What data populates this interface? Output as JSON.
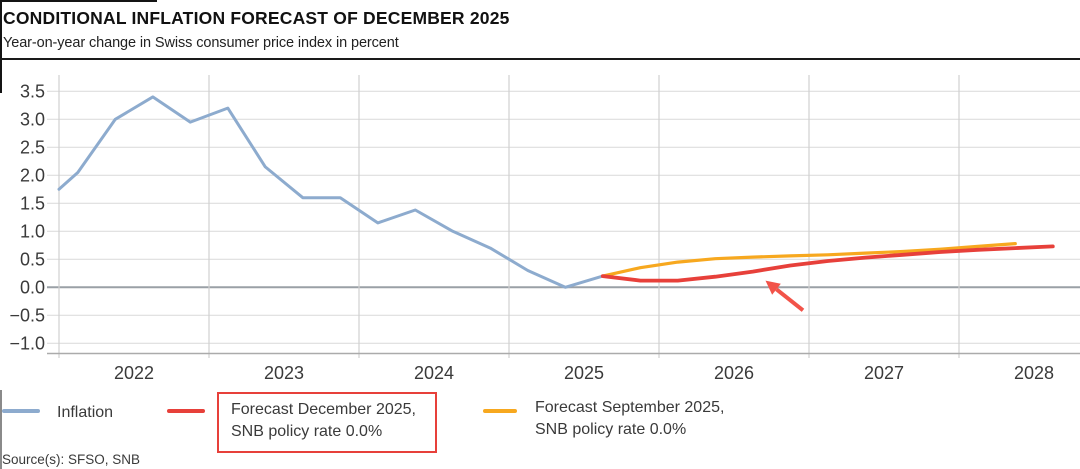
{
  "header": {
    "title": "CONDITIONAL INFLATION FORECAST OF DECEMBER 2025",
    "subtitle": "Year-on-year change in Swiss consumer price index in percent"
  },
  "source_note": "Source(s): SFSO, SNB",
  "colors": {
    "inflation_line": "#8dabce",
    "forecast_december": "#e7403a",
    "forecast_september": "#f7a81f",
    "highlight_box": "#e7403a",
    "arrow": "#f25349",
    "h_gridline": "#dedede",
    "v_gridline": "#d0d0d0",
    "zero_line": "#9aa0a6",
    "axis_line": "#ababab",
    "header_rule": "#1a1a1a",
    "tick_text": "#3a3a3a"
  },
  "legend": {
    "items": [
      {
        "key": "inflation",
        "label_line1": "Inflation",
        "label_line2": "",
        "color": "#8dabce",
        "boxed": false
      },
      {
        "key": "forecast-december-2025",
        "label_line1": "Forecast December 2025,",
        "label_line2": "SNB policy rate 0.0%",
        "color": "#e7403a",
        "boxed": true
      },
      {
        "key": "forecast-september-2025",
        "label_line1": "Forecast September 2025,",
        "label_line2": "SNB policy rate 0.0%",
        "color": "#f7a81f",
        "boxed": false
      }
    ]
  },
  "chart_data": {
    "type": "line",
    "title": "CONDITIONAL INFLATION FORECAST OF DECEMBER 2025",
    "subtitle": "Year-on-year change in Swiss consumer price index in percent",
    "xlabel": "",
    "ylabel": "Year-on-year change in Swiss CPI, percent",
    "grid": true,
    "legend_position": "bottom",
    "ylim": [
      -1.2,
      3.8
    ],
    "xlim": [
      2022.0,
      2028.81
    ],
    "yticks": [
      3.5,
      3.0,
      2.5,
      2.0,
      1.5,
      1.0,
      0.5,
      0.0,
      -0.5,
      -1.0
    ],
    "ytick_labels": [
      "3.5",
      "3.0",
      "2.5",
      "2.0",
      "1.5",
      "1.0",
      "0.5",
      "0.0",
      "−0.5",
      "−1.0"
    ],
    "year_gridlines": [
      2022,
      2023,
      2024,
      2025,
      2026,
      2027,
      2028
    ],
    "xtick_labels": [
      "2022",
      "2023",
      "2024",
      "2025",
      "2026",
      "2027",
      "2028"
    ],
    "series": [
      {
        "name": "Inflation",
        "key": "inflation",
        "color": "#8dabce",
        "width": 3,
        "x": [
          2022.0,
          2022.125,
          2022.375,
          2022.625,
          2022.875,
          2023.125,
          2023.375,
          2023.625,
          2023.875,
          2024.125,
          2024.375,
          2024.625,
          2024.875,
          2025.125,
          2025.375,
          2025.625
        ],
        "y": [
          1.75,
          2.05,
          3.0,
          3.4,
          2.95,
          3.2,
          2.15,
          1.6,
          1.6,
          1.15,
          1.38,
          1.0,
          0.7,
          0.3,
          0.0,
          0.2
        ]
      },
      {
        "name": "Forecast September 2025, SNB policy rate 0.0%",
        "key": "forecast-september-2025",
        "color": "#f7a81f",
        "width": 3.2,
        "x": [
          2025.625,
          2025.875,
          2026.125,
          2026.375,
          2026.625,
          2026.875,
          2027.125,
          2027.375,
          2027.625,
          2027.875,
          2028.125,
          2028.375
        ],
        "y": [
          0.2,
          0.35,
          0.45,
          0.51,
          0.54,
          0.56,
          0.58,
          0.61,
          0.64,
          0.68,
          0.73,
          0.78
        ]
      },
      {
        "name": "Forecast December 2025, SNB policy rate 0.0%",
        "key": "forecast-december-2025",
        "color": "#e7403a",
        "width": 3.8,
        "x": [
          2025.625,
          2025.875,
          2026.125,
          2026.375,
          2026.625,
          2026.875,
          2027.125,
          2027.375,
          2027.625,
          2027.875,
          2028.125,
          2028.375,
          2028.625
        ],
        "y": [
          0.2,
          0.12,
          0.12,
          0.19,
          0.28,
          0.39,
          0.47,
          0.53,
          0.58,
          0.63,
          0.67,
          0.7,
          0.73
        ]
      }
    ],
    "annotation": {
      "type": "arrow",
      "color": "#f25349",
      "tail": [
        2026.96,
        -0.41
      ],
      "tip": [
        2026.71,
        0.12
      ]
    }
  }
}
